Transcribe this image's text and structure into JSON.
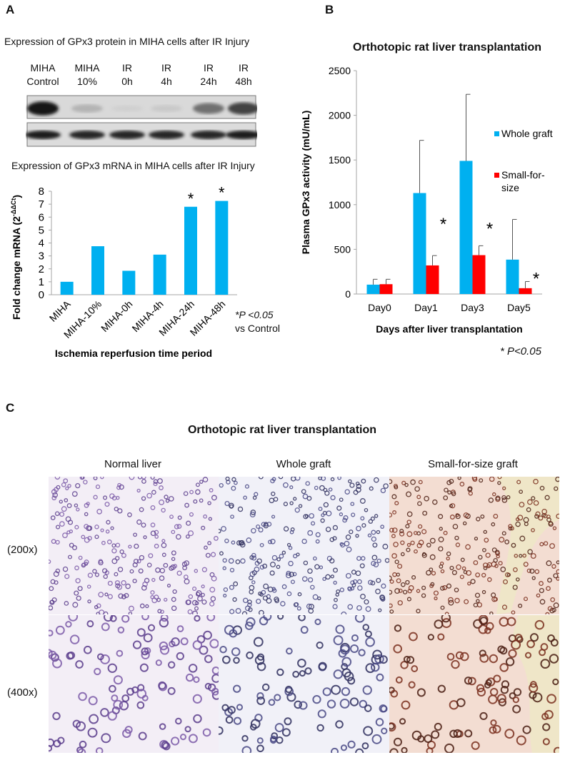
{
  "panel_labels": {
    "a": "A",
    "b": "B",
    "c": "C"
  },
  "panel_a": {
    "blot_title": "Expression of GPx3 protein in MIHA cells after IR Injury",
    "lanes": [
      {
        "line1": "MIHA",
        "line2": "Control",
        "gpx3_band": 0.95,
        "loading_band": 0.9
      },
      {
        "line1": "MIHA",
        "line2": "10%",
        "gpx3_band": 0.3,
        "loading_band": 0.85
      },
      {
        "line1": "IR",
        "line2": "0h",
        "gpx3_band": 0.08,
        "loading_band": 0.85
      },
      {
        "line1": "IR",
        "line2": "4h",
        "gpx3_band": 0.15,
        "loading_band": 0.85
      },
      {
        "line1": "IR",
        "line2": "24h",
        "gpx3_band": 0.6,
        "loading_band": 0.85
      },
      {
        "line1": "IR",
        "line2": "48h",
        "gpx3_band": 0.75,
        "loading_band": 0.9
      }
    ],
    "mrna_title": "Expression of GPx3 mRNA in MIHA  cells after IR Injury",
    "sig_note_line1": "*P <0.05",
    "sig_note_line2": "vs Control"
  },
  "panel_b": {
    "title": "Orthotopic rat liver transplantation",
    "sig_note": "* P<0.05"
  },
  "panel_c": {
    "title": "Orthotopic rat liver transplantation",
    "columns": [
      "Normal liver",
      "Whole graft",
      "Small-for-size graft"
    ],
    "rows": [
      "(200x)",
      "(400x)"
    ]
  },
  "colors": {
    "blue": "#00b0f0",
    "red": "#ff0000",
    "axis": "#a6a6a6"
  },
  "chart_data": [
    {
      "type": "bar",
      "title": "Expression of GPx3 mRNA in MIHA  cells after IR Injury",
      "categories": [
        "MIHA",
        "MIHA-10%",
        "MIHA-0h",
        "MIHA-4h",
        "MIHA-24h",
        "MIHA-48h"
      ],
      "values": [
        1.0,
        3.75,
        1.85,
        3.1,
        6.8,
        7.25
      ],
      "significant": [
        false,
        false,
        false,
        false,
        true,
        true
      ],
      "xlabel": "Ischemia reperfusion time period",
      "ylabel": "Fold change mRNA (2",
      "ylabel_sup": "-ΔΔCt",
      "ylabel_end": ")",
      "ylim": [
        0,
        8
      ],
      "yticks": [
        "0",
        "1",
        "2",
        "3",
        "4",
        "5",
        "6",
        "7",
        "8"
      ],
      "grid": false
    },
    {
      "type": "bar",
      "title": "Orthotopic rat liver transplantation",
      "categories": [
        "Day0",
        "Day1",
        "Day3",
        "Day5"
      ],
      "series": [
        {
          "name": "Whole graft",
          "values": [
            105,
            1130,
            1490,
            385
          ],
          "error_upper": [
            165,
            1720,
            2235,
            835
          ]
        },
        {
          "name": "Small-for-\nsize",
          "name_line1": "Small-for-",
          "name_line2": "size",
          "values": [
            110,
            320,
            435,
            65
          ],
          "error_upper": [
            165,
            430,
            540,
            140
          ]
        }
      ],
      "significant": [
        false,
        true,
        true,
        true
      ],
      "xlabel": "Days after liver transplantation",
      "ylabel": "Plasma GPx3 activity (mU/mL)",
      "ylim": [
        0,
        2500
      ],
      "yticks": [
        "0",
        "500",
        "1000",
        "1500",
        "2000",
        "2500"
      ],
      "legend": "right",
      "grid": false
    }
  ]
}
